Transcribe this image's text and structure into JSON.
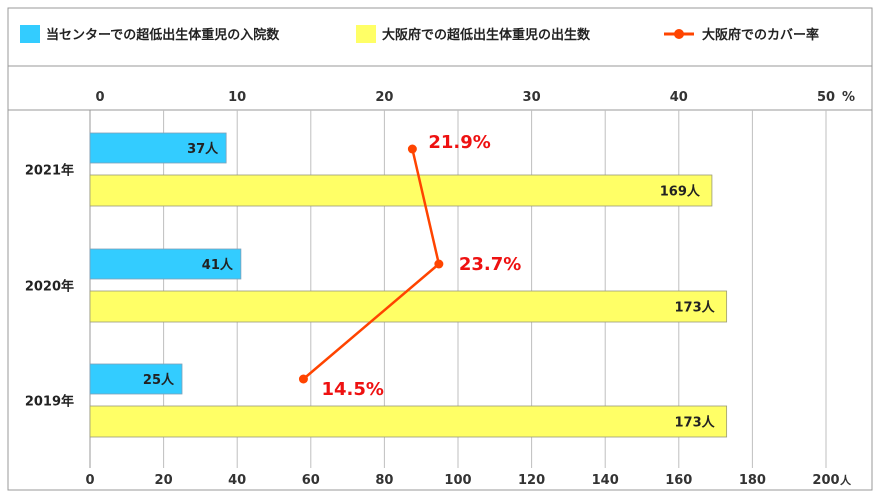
{
  "chart_data": {
    "type": "bar",
    "orientation": "horizontal",
    "categories": [
      "2021年",
      "2020年",
      "2019年"
    ],
    "series": [
      {
        "name": "当センターでの超低出生体重児の入院数",
        "values": [
          37,
          41,
          25
        ],
        "labels": [
          "37人",
          "41人",
          "25人"
        ],
        "color": "#33ccff",
        "axis": "bottom"
      },
      {
        "name": "大阪府での超低出生体重児の出生数",
        "values": [
          169,
          173,
          173
        ],
        "labels": [
          "169人",
          "173人",
          "173人"
        ],
        "color": "#ffff66",
        "axis": "bottom"
      },
      {
        "name": "大阪府でのカバー率",
        "type": "line",
        "values": [
          21.9,
          23.7,
          14.5
        ],
        "labels": [
          "21.9%",
          "23.7%",
          "14.5%"
        ],
        "color": "#ff4400",
        "label_color": "#ee1111",
        "axis": "top"
      }
    ],
    "bottom_axis": {
      "range": [
        0,
        200
      ],
      "ticks": [
        0,
        20,
        40,
        60,
        80,
        100,
        120,
        140,
        160,
        180,
        200
      ],
      "unit": "人"
    },
    "top_axis": {
      "range": [
        0,
        50
      ],
      "ticks": [
        0,
        10,
        20,
        30,
        40,
        50
      ],
      "unit": "%"
    },
    "grid": true,
    "legend": "top"
  }
}
